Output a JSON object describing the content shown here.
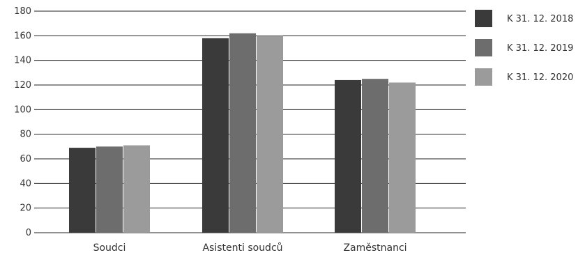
{
  "chart_data": {
    "type": "bar",
    "categories": [
      "Soudci",
      "Asistenti soudců",
      "Zaměstnanci"
    ],
    "series": [
      {
        "name": "K 31. 12. 2018",
        "values": [
          69,
          158,
          124
        ],
        "color": "#3a3a3a"
      },
      {
        "name": "K 31. 12. 2019",
        "values": [
          70,
          162,
          125
        ],
        "color": "#6d6d6d"
      },
      {
        "name": "K 31. 12. 2020",
        "values": [
          71,
          160,
          122
        ],
        "color": "#9b9b9b"
      }
    ],
    "ylim": [
      0,
      180
    ],
    "yticks": [
      0,
      20,
      40,
      60,
      80,
      100,
      120,
      140,
      160,
      180
    ],
    "grid": true,
    "legend_position": "right"
  }
}
